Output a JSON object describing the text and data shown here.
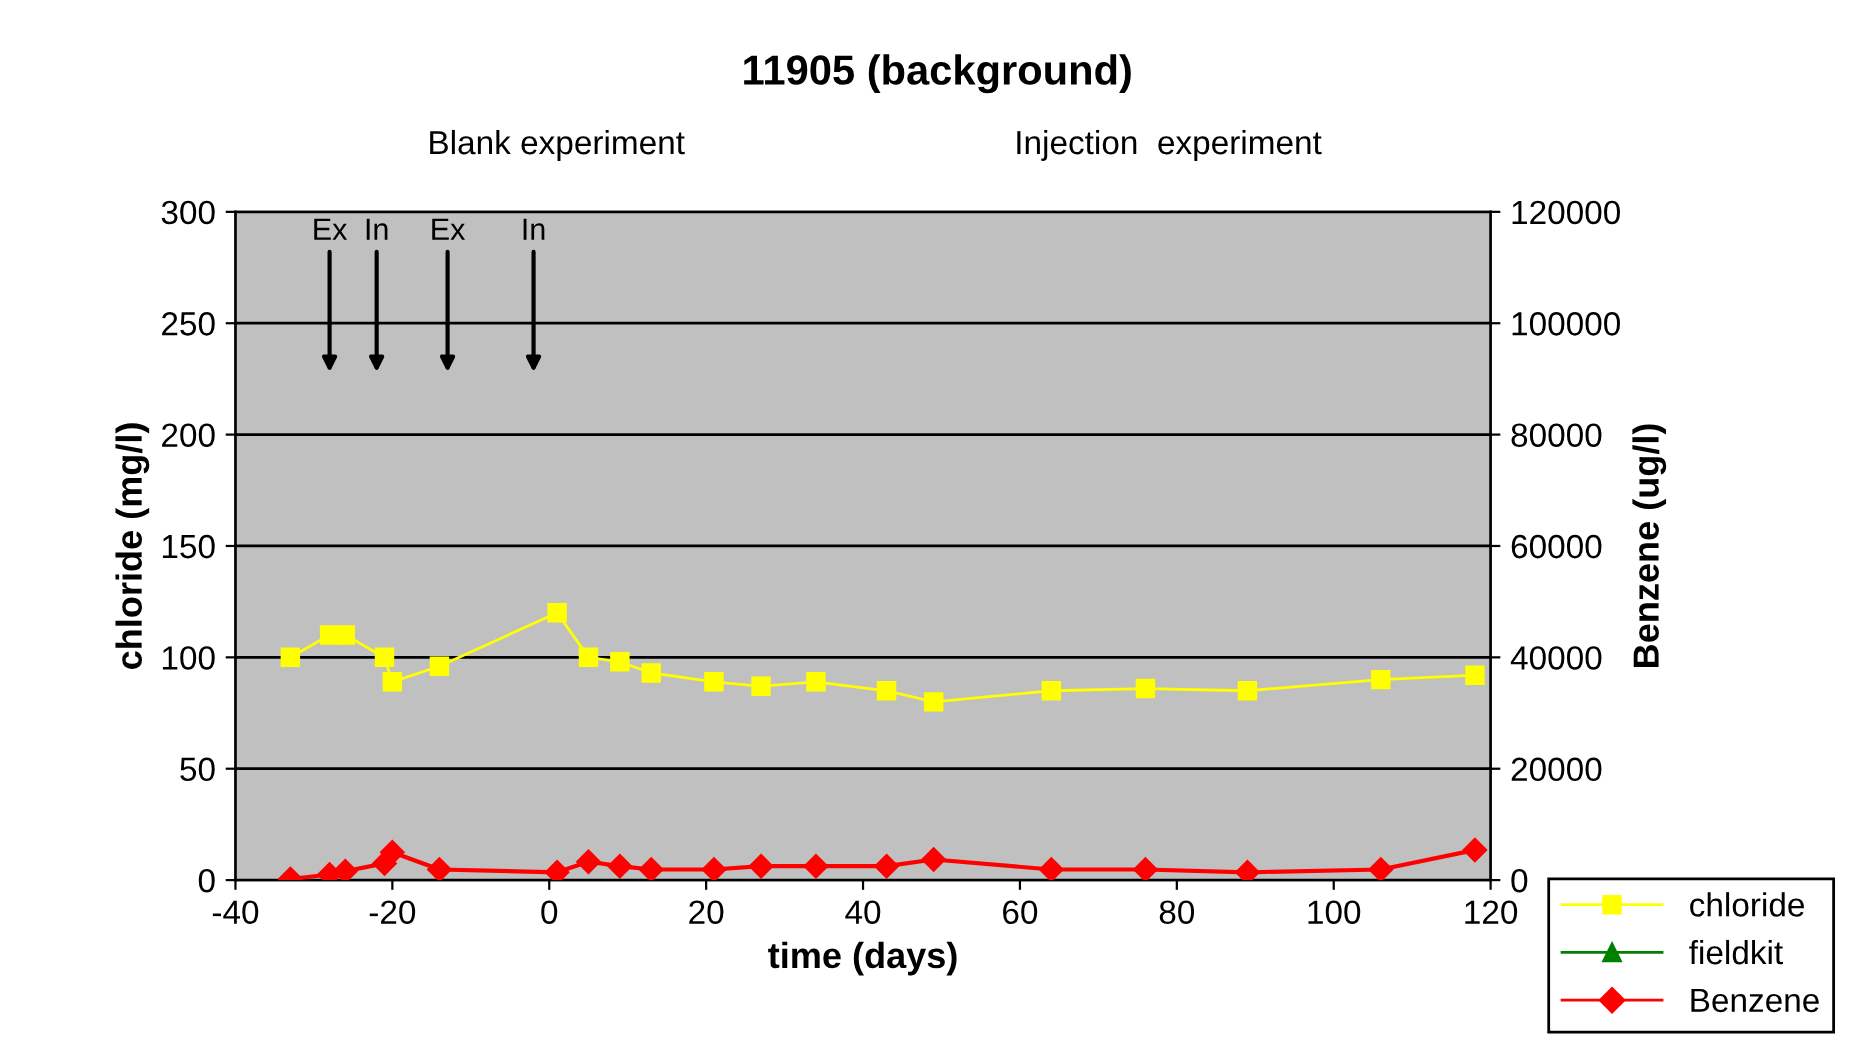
{
  "chart_data": {
    "type": "line",
    "title": "11905 (background)",
    "xlabel": "time (days)",
    "ylabel": "chloride (mg/l)",
    "y2label": "Benzene (ug/l)",
    "xlim": [
      -40,
      120
    ],
    "xticks": [
      -40,
      -20,
      0,
      20,
      40,
      60,
      80,
      100,
      120
    ],
    "ylim": [
      0,
      300
    ],
    "yticks": [
      0,
      50,
      100,
      150,
      200,
      250,
      300
    ],
    "y2lim": [
      0,
      120000
    ],
    "y2ticks": [
      0,
      20000,
      40000,
      60000,
      80000,
      100000,
      120000
    ],
    "grid": "y",
    "legend": "bottom right",
    "series": [
      {
        "name": "chloride",
        "color": "#ffff00",
        "marker": "square",
        "x": [
          -33,
          -28,
          -26,
          -21,
          -20,
          -14,
          1,
          5,
          9,
          13,
          21,
          27,
          34,
          43,
          49,
          64,
          76,
          89,
          106,
          118
        ],
        "values": [
          100,
          110,
          110,
          100,
          89,
          96,
          120,
          100,
          98,
          93,
          89,
          87,
          89,
          85,
          80,
          85,
          86,
          85,
          90,
          92
        ]
      },
      {
        "name": "fieldkit",
        "color": "#008000",
        "marker": "triangle"
      },
      {
        "name": "Benzene",
        "color": "#ff0000",
        "marker": "diamond",
        "axis": "y2",
        "x": [
          -33,
          -28,
          -26,
          -21,
          -20,
          -14,
          1,
          5,
          9,
          13,
          21,
          27,
          34,
          43,
          49,
          64,
          76,
          89,
          106,
          118
        ],
        "values": [
          200,
          1000,
          1600,
          3000,
          5000,
          1900,
          1400,
          3300,
          2500,
          1900,
          1900,
          2500,
          2500,
          2500,
          3700,
          1900,
          1900,
          1400,
          1900,
          5400
        ]
      }
    ],
    "annotations": [
      "Blank experiment",
      "Injection  experiment",
      "Ex",
      "In",
      "Ex",
      "In"
    ]
  }
}
